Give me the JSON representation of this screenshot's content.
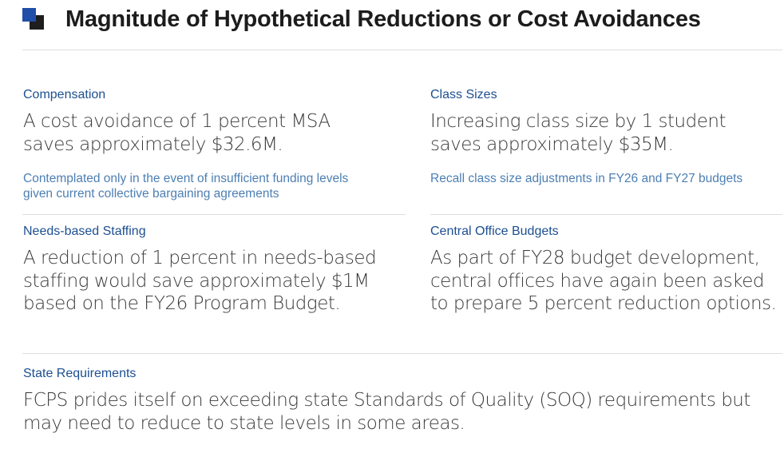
{
  "title": "Magnitude of Hypothetical Reductions or Cost Avoidances",
  "sections": {
    "compensation": {
      "label": "Compensation",
      "body": "A cost avoidance of 1 percent MSA saves approximately $32.6M.",
      "note": "Contemplated only in the event of insufficient funding levels given current collective bargaining agreements"
    },
    "class_sizes": {
      "label": "Class Sizes",
      "body": "Increasing class size by 1 student saves approximately $35M.",
      "note": "Recall class size adjustments in FY26 and FY27 budgets"
    },
    "needs_based": {
      "label": "Needs-based Staffing",
      "body": "A reduction of 1 percent in needs-based staffing would save approximately $1M based on the FY26 Program Budget."
    },
    "central_office": {
      "label": "Central Office Budgets",
      "body": "As part of FY28 budget development, central offices have again been asked to prepare 5 percent reduction options."
    },
    "state_requirements": {
      "label": "State Requirements",
      "body": "FCPS prides itself on exceeding state Standards of Quality (SOQ) requirements but may need to reduce to state levels in some areas."
    }
  },
  "colors": {
    "accent_blue": "#1f4fa8",
    "label_blue": "#1d4f91",
    "note_blue": "#4c7fb3",
    "body_text": "#3a3a3a"
  }
}
